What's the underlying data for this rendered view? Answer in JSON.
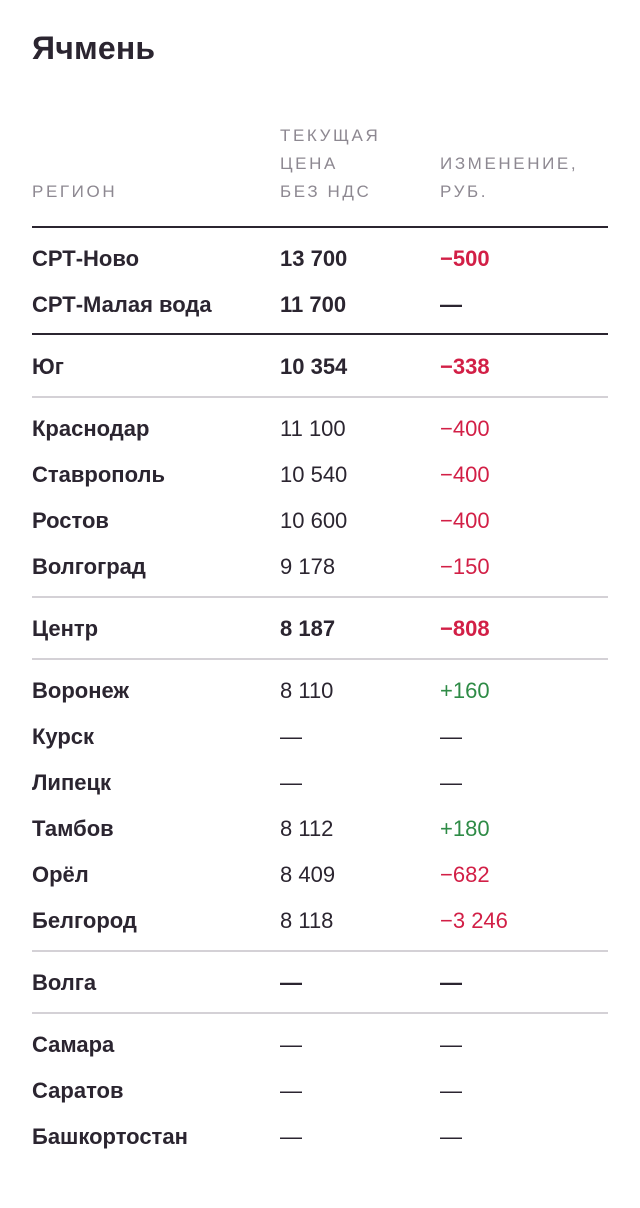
{
  "title": "Ячмень",
  "headers": {
    "region": "РЕГИОН",
    "price_l1": "ТЕКУЩАЯ",
    "price_l2": "ЦЕНА",
    "price_l3": "БЕЗ НДС",
    "change_l1": "ИЗМЕНЕНИЕ,",
    "change_l2": "РУБ."
  },
  "rows": [
    {
      "name": "СРТ-Ново",
      "price": "13 700",
      "change": "−500",
      "bold": true,
      "trend": "neg"
    },
    {
      "name": "СРТ-Малая вода",
      "price": "11 700",
      "change": "—",
      "bold": true,
      "trend": "neutral"
    },
    {
      "name": "Юг",
      "price": "10 354",
      "change": "−338",
      "bold": true,
      "trend": "neg"
    },
    {
      "name": "Краснодар",
      "price": "11 100",
      "change": "−400",
      "bold": false,
      "trend": "neg"
    },
    {
      "name": "Ставрополь",
      "price": "10 540",
      "change": "−400",
      "bold": false,
      "trend": "neg"
    },
    {
      "name": "Ростов",
      "price": "10 600",
      "change": "−400",
      "bold": false,
      "trend": "neg"
    },
    {
      "name": "Волгоград",
      "price": "9 178",
      "change": "−150",
      "bold": false,
      "trend": "neg"
    },
    {
      "name": "Центр",
      "price": "8 187",
      "change": "−808",
      "bold": true,
      "trend": "neg"
    },
    {
      "name": "Воронеж",
      "price": "8 110",
      "change": "+160",
      "bold": false,
      "trend": "pos"
    },
    {
      "name": "Курск",
      "price": "—",
      "change": "—",
      "bold": false,
      "trend": "neutral"
    },
    {
      "name": "Липецк",
      "price": "—",
      "change": "—",
      "bold": false,
      "trend": "neutral"
    },
    {
      "name": "Тамбов",
      "price": "8 112",
      "change": "+180",
      "bold": false,
      "trend": "pos"
    },
    {
      "name": "Орёл",
      "price": "8 409",
      "change": "−682",
      "bold": false,
      "trend": "neg"
    },
    {
      "name": "Белгород",
      "price": "8 118",
      "change": "−3 246",
      "bold": false,
      "trend": "neg"
    },
    {
      "name": "Волга",
      "price": "—",
      "change": "—",
      "bold": true,
      "trend": "neutral"
    },
    {
      "name": "Самара",
      "price": "—",
      "change": "—",
      "bold": false,
      "trend": "neutral"
    },
    {
      "name": "Саратов",
      "price": "—",
      "change": "—",
      "bold": false,
      "trend": "neutral"
    },
    {
      "name": "Башкортостан",
      "price": "—",
      "change": "—",
      "bold": false,
      "trend": "neutral"
    }
  ],
  "colors": {
    "negative": "#d21f46",
    "positive": "#2e8b46",
    "text": "#2b2530",
    "header": "#8d8891"
  }
}
